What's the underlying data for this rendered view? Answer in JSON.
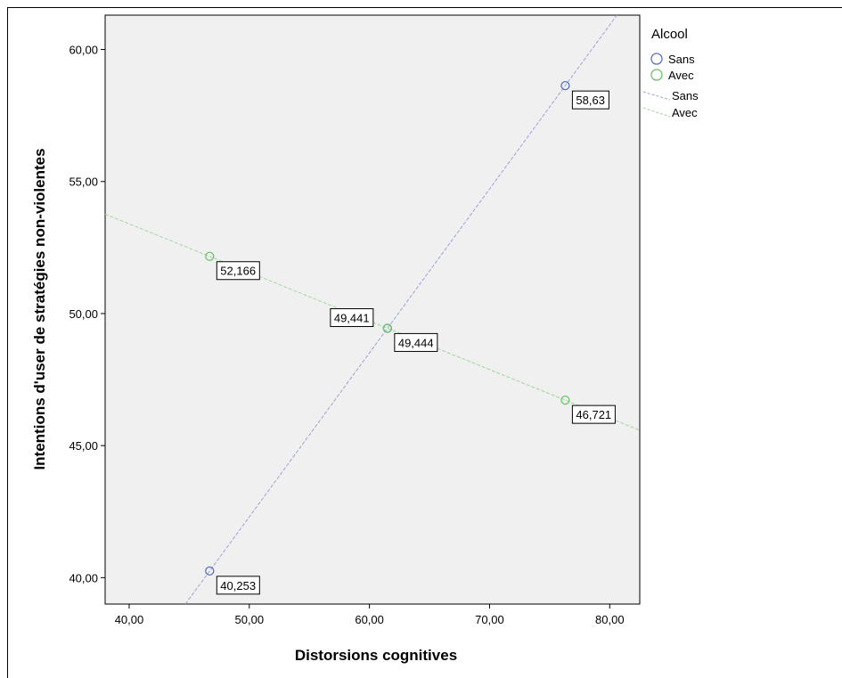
{
  "chart_data": {
    "type": "scatter",
    "title": "",
    "xlabel": "Distorsions cognitives",
    "ylabel": "Intentions d'user de stratégies non-violentes",
    "xlim": [
      38,
      82.5
    ],
    "ylim": [
      39,
      61.3
    ],
    "x_ticks": [
      40,
      50,
      60,
      70,
      80
    ],
    "x_tick_labels": [
      "40,00",
      "50,00",
      "60,00",
      "70,00",
      "80,00"
    ],
    "y_ticks": [
      40,
      45,
      50,
      55,
      60
    ],
    "y_tick_labels": [
      "40,00",
      "45,00",
      "50,00",
      "55,00",
      "60,00"
    ],
    "grid": false,
    "legend": {
      "title": "Alcool",
      "placement": "right",
      "marker_entries": [
        "Sans",
        "Avec"
      ],
      "line_entries": [
        "Sans",
        "Avec"
      ]
    },
    "series": [
      {
        "name": "Sans",
        "color": "#5b6fc4",
        "line_color": "#9aa3d6",
        "points": [
          {
            "x": 46.7,
            "y": 40.253,
            "label": "40,253"
          },
          {
            "x": 61.5,
            "y": 49.441,
            "label": "49,441"
          },
          {
            "x": 76.3,
            "y": 58.63,
            "label": "58,63"
          }
        ]
      },
      {
        "name": "Avec",
        "color": "#6cc36c",
        "line_color": "#9fd89f",
        "points": [
          {
            "x": 46.7,
            "y": 52.166,
            "label": "52,166"
          },
          {
            "x": 61.5,
            "y": 49.444,
            "label": "49,444"
          },
          {
            "x": 76.3,
            "y": 46.721,
            "label": "46,721"
          }
        ]
      }
    ]
  }
}
